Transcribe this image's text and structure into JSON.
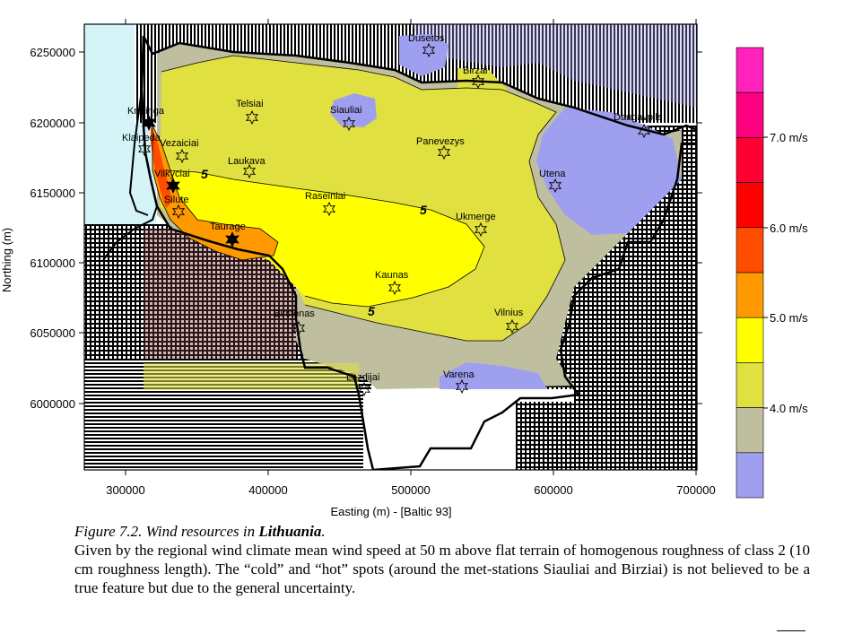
{
  "map": {
    "x_axis": {
      "title": "Easting (m) - [Baltic 93]",
      "ticks": [
        "300000",
        "400000",
        "500000",
        "600000",
        "700000"
      ]
    },
    "y_axis": {
      "title": "Northing (m)",
      "ticks": [
        "6250000",
        "6200000",
        "6150000",
        "6100000",
        "6050000",
        "6000000"
      ]
    },
    "legend": {
      "labels": [
        "7.0 m/s",
        "6.0 m/s",
        "5.0 m/s",
        "4.0 m/s"
      ],
      "colors": [
        "#ff22bb",
        "#ff0080",
        "#ff0033",
        "#ff0000",
        "#ff4d00",
        "#ff9900",
        "#ffff00",
        "#e0e040",
        "#bfbf9f",
        "#9f9fef"
      ]
    },
    "contour_label": "5",
    "stations": [
      {
        "name": "Kretinga",
        "type": "measured"
      },
      {
        "name": "Klaipeda",
        "type": "station"
      },
      {
        "name": "Vezaiciai",
        "type": "station"
      },
      {
        "name": "Vilkyciai",
        "type": "measured"
      },
      {
        "name": "Silute",
        "type": "station"
      },
      {
        "name": "Taurage",
        "type": "measured"
      },
      {
        "name": "Telsiai",
        "type": "station"
      },
      {
        "name": "Siauliai",
        "type": "station"
      },
      {
        "name": "Laukava",
        "type": "station"
      },
      {
        "name": "Raseiniai",
        "type": "station"
      },
      {
        "name": "Panevezys",
        "type": "station"
      },
      {
        "name": "Birzai",
        "type": "station"
      },
      {
        "name": "Dusetos",
        "type": "station"
      },
      {
        "name": "Daugavpils",
        "type": "station"
      },
      {
        "name": "Utena",
        "type": "station"
      },
      {
        "name": "Ukmerge",
        "type": "station"
      },
      {
        "name": "Kaunas",
        "type": "station"
      },
      {
        "name": "Vilnius",
        "type": "station"
      },
      {
        "name": "Birstonas",
        "type": "station"
      },
      {
        "name": "Lazdijai",
        "type": "station"
      },
      {
        "name": "Varena",
        "type": "station"
      }
    ]
  },
  "caption": {
    "title_prefix": "Figure 7.2. Wind resources in ",
    "title_country": "Lithuania",
    "title_suffix": ".",
    "body": "Given by the regional wind climate mean wind speed at 50 m above flat terrain of homogenous roughness of class 2 (10 cm roughness length). The “cold” and “hot” spots (around the met-stations Siauliai and Birziai) is not believed to be a true feature but due to the general uncertainty."
  }
}
